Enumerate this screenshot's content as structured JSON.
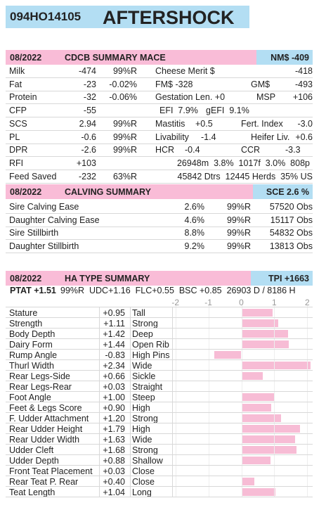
{
  "header": {
    "id": "094HO14105",
    "name": "AFTERSHOCK"
  },
  "summary": {
    "date": "08/2022",
    "title": "CDCB SUMMARY MACE",
    "badge": "NM$ -409",
    "rows": [
      [
        "Milk",
        "-474",
        "99%R",
        "Cheese Merit $",
        "-418"
      ],
      [
        "Fat",
        "-23",
        "-0.02%",
        "FM$ -328",
        "GM$",
        "-493"
      ],
      [
        "Protein",
        "-32",
        "-0.06%",
        "Gestation Len. +0",
        "MSP",
        "+106"
      ],
      [
        "CFP",
        "-55",
        "EFI  7.9%",
        "gEFI  9.1%"
      ],
      [
        "SCS",
        "2.94",
        "99%R",
        "Mastitis",
        "+0.5",
        "Fert. Index",
        "-3.0"
      ],
      [
        "PL",
        "-0.6",
        "99%R",
        "Livability",
        "-1.4",
        "Heifer Liv.",
        "+0.6"
      ],
      [
        "DPR",
        "-2.6",
        "99%R",
        "HCR",
        "-0.4",
        "CCR",
        "-3.3"
      ],
      [
        "RFI",
        "+103",
        "26948m  3.8%  1017f  3.0%  808p"
      ],
      [
        "Feed Saved",
        "-232",
        "63%R",
        "45842 Dtrs  12445 Herds  35% US"
      ]
    ]
  },
  "calving": {
    "date": "08/2022",
    "title": "CALVING SUMMARY",
    "badge": "SCE 2.6 %",
    "rows": [
      [
        "Sire Calving Ease",
        "2.6%",
        "99%R",
        "57520 Obs"
      ],
      [
        "Daughter Calving Ease",
        "4.6%",
        "99%R",
        "15117 Obs"
      ],
      [
        "Sire Stillbirth",
        "8.8%",
        "99%R",
        "54832 Obs"
      ],
      [
        "Daughter Stillbirth",
        "9.2%",
        "99%R",
        "13813 Obs"
      ]
    ]
  },
  "type_summary": {
    "date": "08/2022",
    "title": "HA TYPE SUMMARY",
    "badge": "TPI +1663",
    "ptat": "PTAT +1.51",
    "ptat_details": "99%R  UDC+1.16  FLC+0.55  BSC +0.85  26903 D / 8186 H",
    "chart": {
      "type": "bar",
      "categories": [
        "Stature",
        "Strength",
        "Body Depth",
        "Dairy Form",
        "Rump Angle",
        "Thurl Width",
        "Rear Legs-Side",
        "Rear Legs-Rear",
        "Foot Angle",
        "Feet & Legs Score",
        "F. Udder Attachment",
        "Rear Udder Height",
        "Rear Udder Width",
        "Udder Cleft",
        "Udder Depth",
        "Front Teat Placement",
        "Rear Teat P. Rear",
        "Teat Length"
      ],
      "values": [
        0.95,
        1.11,
        1.42,
        1.44,
        -0.83,
        2.34,
        0.66,
        0.03,
        1.0,
        0.9,
        1.2,
        1.79,
        1.63,
        1.68,
        0.88,
        0.03,
        0.4,
        1.04
      ],
      "value_labels": [
        "+0.95",
        "+1.11",
        "+1.42",
        "+1.44",
        "-0.83",
        "+2.34",
        "+0.66",
        "+0.03",
        "+1.00",
        "+0.90",
        "+1.20",
        "+1.79",
        "+1.63",
        "+1.68",
        "+0.88",
        "+0.03",
        "+0.40",
        "+1.04"
      ],
      "descriptions": [
        "Tall",
        "Strong",
        "Deep",
        "Open Rib",
        "High Pins",
        "Wide",
        "Sickle",
        "Straight",
        "Steep",
        "High",
        "Strong",
        "High",
        "Wide",
        "Strong",
        "Shallow",
        "Close",
        "Close",
        "Long"
      ],
      "color": "#f7bcd5",
      "xlim": [
        -2.1,
        2.1
      ],
      "xticks": [
        -2,
        -1,
        0,
        1,
        2
      ]
    }
  }
}
